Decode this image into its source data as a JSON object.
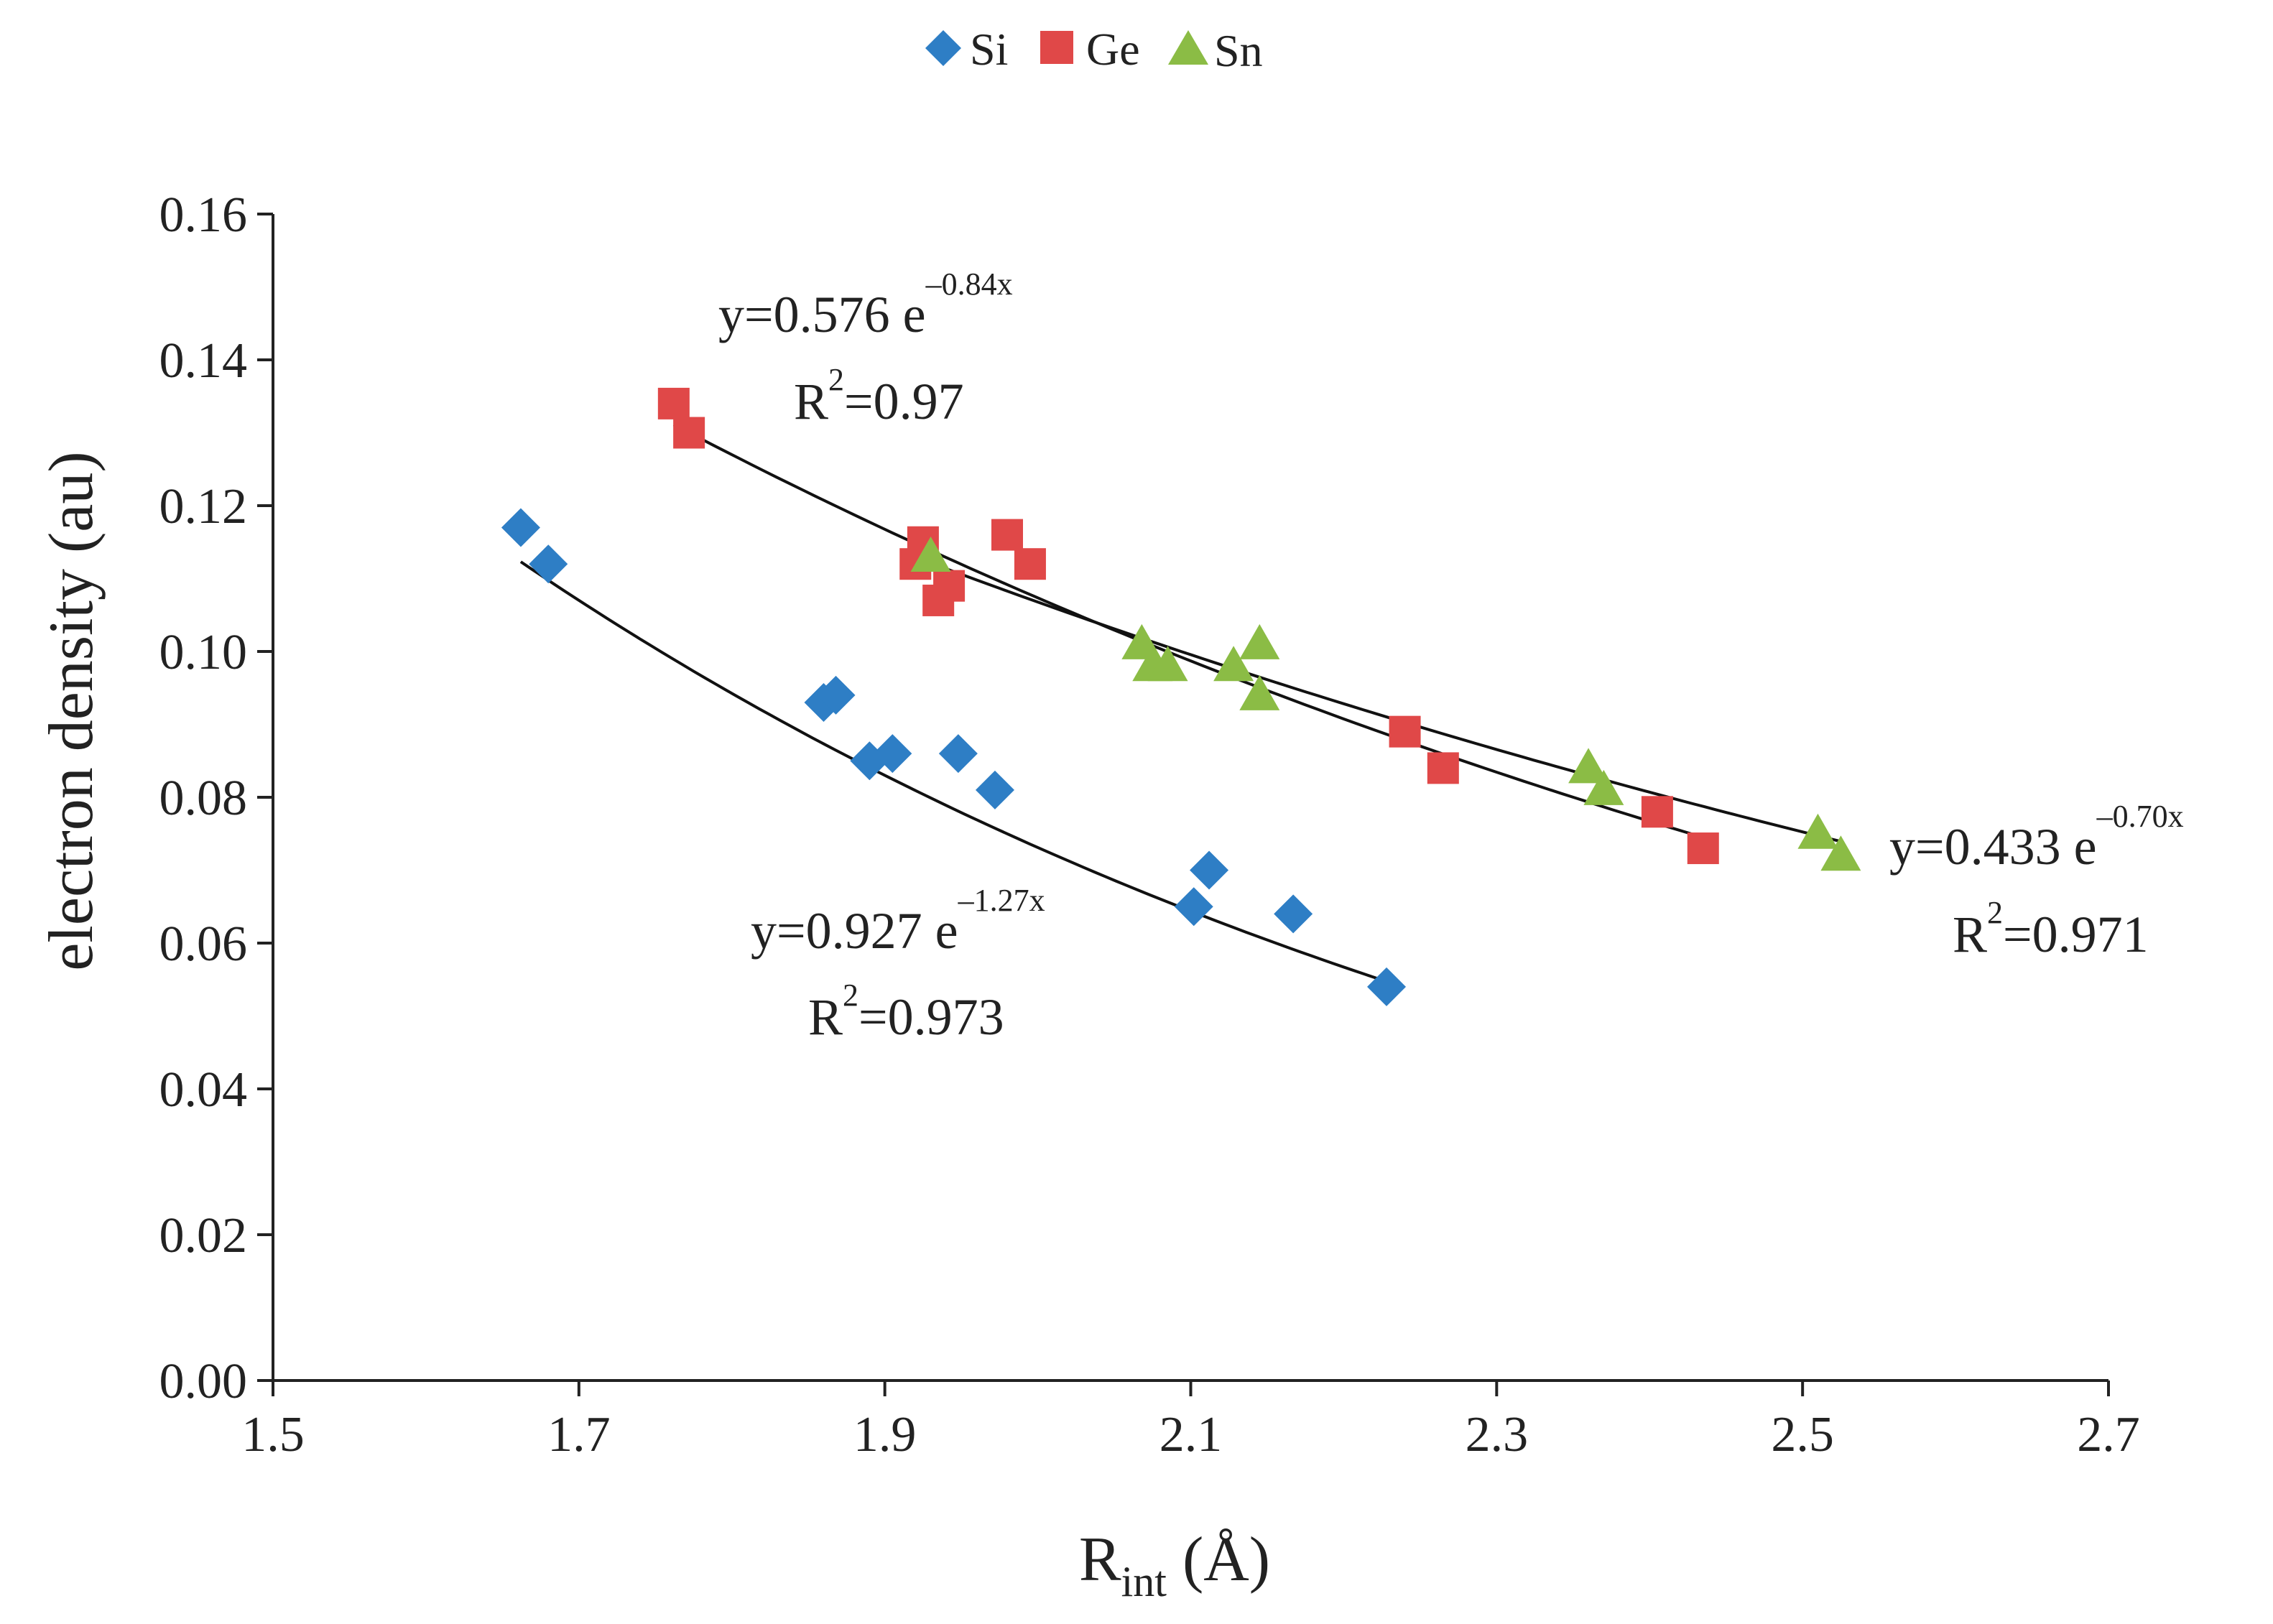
{
  "chart_data": {
    "type": "scatter",
    "xlabel": {
      "main": "R",
      "sub": "int",
      "unit": " (Å)"
    },
    "ylabel": "electron density (au)",
    "xlim": [
      1.5,
      2.7
    ],
    "ylim": [
      0.0,
      0.16
    ],
    "xticks": [
      "1.5",
      "1.7",
      "1.9",
      "2.1",
      "2.3",
      "2.5",
      "2.7"
    ],
    "yticks": [
      "0.00",
      "0.02",
      "0.04",
      "0.06",
      "0.08",
      "0.10",
      "0.12",
      "0.14",
      "0.16"
    ],
    "grid": false,
    "legend_position": "top-center",
    "series": [
      {
        "name": "Si",
        "color": "#2e7ec5",
        "marker": "diamond",
        "x": [
          1.662,
          1.68,
          1.86,
          1.868,
          1.89,
          1.905,
          1.948,
          1.972,
          2.102,
          2.112,
          2.167,
          2.228
        ],
        "y": [
          0.117,
          0.112,
          0.093,
          0.094,
          0.085,
          0.086,
          0.086,
          0.081,
          0.065,
          0.07,
          0.064,
          0.054
        ],
        "fit": {
          "a": 0.927,
          "b": -1.27,
          "x_range": [
            1.662,
            2.228
          ],
          "equation": "y=0.927 e",
          "exponent": "–1.27x",
          "r2_label": "R",
          "r2_sup": "2",
          "r2_value": "=0.973"
        }
      },
      {
        "name": "Ge",
        "color": "#e04848",
        "marker": "square",
        "x": [
          1.762,
          1.772,
          1.92,
          1.925,
          1.935,
          1.942,
          1.98,
          1.995,
          2.24,
          2.265,
          2.405,
          2.435
        ],
        "y": [
          0.134,
          0.13,
          0.112,
          0.115,
          0.107,
          0.109,
          0.116,
          0.112,
          0.089,
          0.084,
          0.078,
          0.073
        ],
        "fit": {
          "a": 0.576,
          "b": -0.84,
          "x_range": [
            1.762,
            2.435
          ],
          "equation": "y=0.576 e",
          "exponent": "–0.84x",
          "r2_label": "R",
          "r2_sup": "2",
          "r2_value": "=0.97"
        }
      },
      {
        "name": "Sn",
        "color": "#8bbc45",
        "marker": "triangle",
        "x": [
          1.93,
          2.068,
          2.075,
          2.085,
          2.128,
          2.145,
          2.145,
          2.36,
          2.37,
          2.51,
          2.525
        ],
        "y": [
          0.113,
          0.101,
          0.098,
          0.098,
          0.098,
          0.101,
          0.094,
          0.084,
          0.081,
          0.075,
          0.072
        ],
        "fit": {
          "a": 0.433,
          "b": -0.7,
          "x_range": [
            1.93,
            2.525
          ],
          "equation": "y=0.433 e",
          "exponent": "–0.70x",
          "r2_label": "R",
          "r2_sup": "2",
          "r2_value": "=0.971"
        }
      }
    ]
  }
}
